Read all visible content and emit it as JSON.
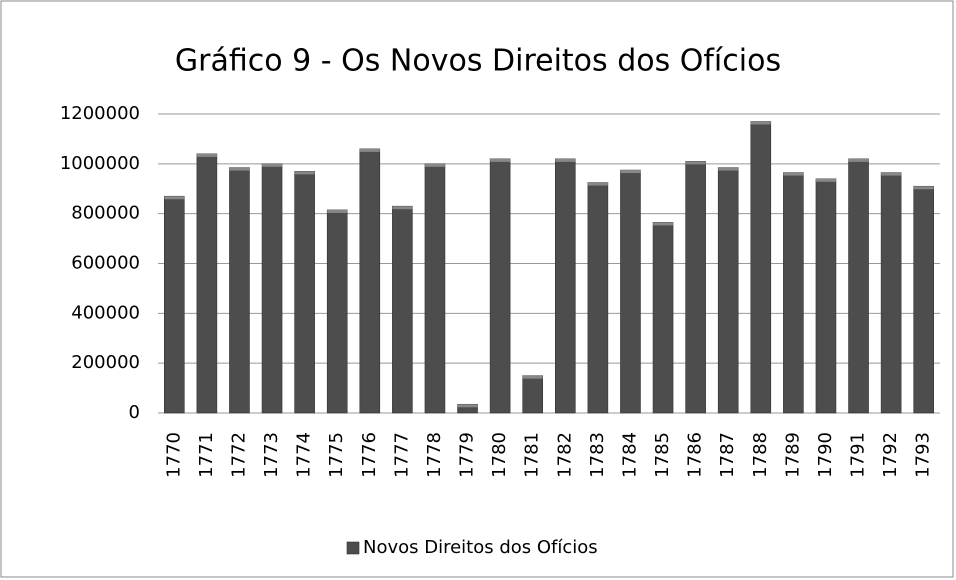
{
  "chart_data": {
    "type": "bar",
    "title": "Gráfico 9 - Os Novos Direitos dos Ofícios",
    "categories": [
      "1770",
      "1771",
      "1772",
      "1773",
      "1774",
      "1775",
      "1776",
      "1777",
      "1778",
      "1779",
      "1780",
      "1781",
      "1782",
      "1783",
      "1784",
      "1785",
      "1786",
      "1787",
      "1788",
      "1789",
      "1790",
      "1791",
      "1792",
      "1793"
    ],
    "series": [
      {
        "name": "Novos Direitos dos Ofícios",
        "color": "#4d4d4d",
        "values": [
          870000,
          1040000,
          985000,
          1000000,
          970000,
          815000,
          1060000,
          830000,
          1000000,
          35000,
          1020000,
          150000,
          1020000,
          925000,
          975000,
          765000,
          1010000,
          985000,
          1170000,
          965000,
          940000,
          1020000,
          965000,
          910000
        ]
      }
    ],
    "ylim": [
      0,
      1200000
    ],
    "yticks": [
      0,
      200000,
      400000,
      600000,
      800000,
      1000000,
      1200000
    ],
    "grid": true,
    "legend": "bottom"
  }
}
